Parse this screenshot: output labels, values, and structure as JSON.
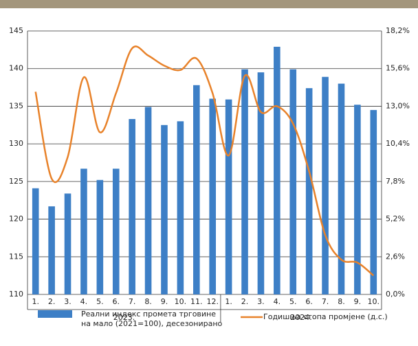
{
  "chart_data": {
    "type": "bar-line",
    "categories": [
      "1.",
      "2.",
      "3.",
      "4.",
      "5.",
      "6.",
      "7.",
      "8.",
      "9.",
      "10.",
      "11.",
      "12.",
      "1.",
      "2.",
      "3.",
      "4.",
      "5.",
      "6.",
      "7.",
      "8.",
      "9.",
      "10."
    ],
    "groups": [
      {
        "label": "2023.",
        "count": 12
      },
      {
        "label": "2024.",
        "count": 10
      }
    ],
    "series": [
      {
        "name": "Реални индекс промета трговине на мало (2021=100), десезонирано",
        "type": "bar",
        "color": "#3d7fc6",
        "values": [
          124.1,
          121.7,
          123.4,
          126.7,
          125.2,
          126.7,
          133.3,
          134.9,
          132.5,
          133.0,
          137.8,
          136.0,
          135.9,
          139.9,
          139.5,
          142.9,
          139.9,
          137.4,
          138.9,
          138.0,
          135.2,
          134.5
        ]
      },
      {
        "name": "Годишња стопа промјене (д.с.)",
        "type": "line",
        "axis": "y2",
        "color": "#e8822a",
        "values": [
          14.0,
          8.0,
          9.5,
          15.0,
          11.2,
          13.9,
          17.0,
          16.5,
          15.8,
          15.5,
          16.3,
          13.9,
          9.6,
          15.1,
          12.6,
          13.0,
          11.8,
          8.5,
          4.1,
          2.4,
          2.2,
          1.3
        ]
      }
    ],
    "ylim": [
      110,
      145
    ],
    "yticks": [
      110,
      115,
      120,
      125,
      130,
      135,
      140,
      145
    ],
    "y2lim": [
      0,
      18.2
    ],
    "y2ticks": [
      {
        "value": 0,
        "label": "0,0%"
      },
      {
        "value": 2.6,
        "label": "2,6%"
      },
      {
        "value": 5.2,
        "label": "5,2%"
      },
      {
        "value": 7.8,
        "label": "7,8%"
      },
      {
        "value": 10.4,
        "label": "10,4%"
      },
      {
        "value": 13,
        "label": "13,0%"
      },
      {
        "value": 15.6,
        "label": "15,6%"
      },
      {
        "value": 18.2,
        "label": "18,2%"
      }
    ],
    "grid": true
  }
}
